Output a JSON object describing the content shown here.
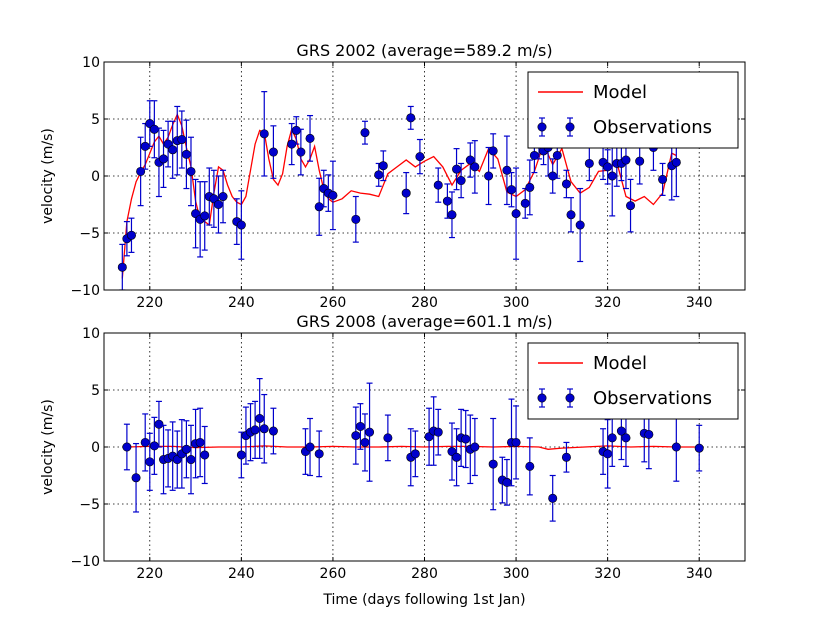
{
  "figure": {
    "xlabel": "Time (days following 1st Jan)"
  },
  "chart_data": [
    {
      "type": "scatter",
      "title": "GRS 2002 (average=589.2 m/s)",
      "ylabel": "velocity (m/s)",
      "xlim": [
        210,
        350
      ],
      "ylim": [
        -10,
        10
      ],
      "xticks": [
        "220",
        "240",
        "260",
        "280",
        "300",
        "320",
        "340"
      ],
      "yticks": [
        "−10",
        "−5",
        "0",
        "5",
        "10"
      ],
      "grid": true,
      "legend": {
        "position": "top-right",
        "entries": [
          "Model",
          "Observations"
        ]
      },
      "colors": {
        "model": "#ff0000",
        "observations": "#0000cc"
      },
      "model": {
        "x": [
          214,
          215,
          216,
          217,
          218,
          219,
          220,
          221,
          222,
          223,
          224,
          225,
          226,
          227,
          228,
          229,
          230,
          231,
          232,
          233,
          234,
          235,
          236,
          237,
          238,
          239,
          240,
          241,
          242,
          243,
          244,
          245,
          246,
          247,
          248,
          249,
          250,
          251,
          252,
          253,
          254,
          255,
          256,
          257,
          258,
          259,
          260,
          262,
          264,
          266,
          268,
          270,
          272,
          274,
          276,
          278,
          280,
          282,
          284,
          286,
          288,
          290,
          292,
          294,
          296,
          298,
          300,
          302,
          304,
          306,
          308,
          310,
          312,
          314,
          316,
          318,
          320,
          322,
          324,
          326,
          328,
          330,
          332,
          334,
          335
        ],
        "y": [
          -9,
          -4,
          -2,
          -0.5,
          0.3,
          1,
          2,
          3,
          3.5,
          2.8,
          3.4,
          4.5,
          5.4,
          4.4,
          2.5,
          0.8,
          -2.2,
          -3.8,
          -4,
          -4.3,
          -1.5,
          0.8,
          0.5,
          -0.8,
          -1.8,
          -2.3,
          -2.5,
          -1.8,
          0.5,
          2.8,
          4,
          3.8,
          1.5,
          -0.3,
          -0.8,
          0.2,
          2.6,
          4.1,
          3.2,
          1.5,
          0.8,
          1.5,
          2.6,
          0.5,
          -1.2,
          -2,
          -2.3,
          -2,
          -1.3,
          -1.5,
          -1.6,
          -1.8,
          0.2,
          0.8,
          1.4,
          0.8,
          1.3,
          1.7,
          0.8,
          -0.8,
          0.5,
          1.1,
          0.4,
          2.4,
          1.5,
          -1.4,
          -1.8,
          -1.2,
          0.4,
          2.8,
          1,
          2.4,
          -0.5,
          -1.5,
          -1,
          0.4,
          0.5,
          1.2,
          -1.8,
          -2.2,
          -1.8,
          -2.5,
          -1.5,
          2,
          1.8
        ]
      },
      "observations": {
        "x": [
          214,
          215,
          216,
          218,
          219,
          220,
          221,
          222,
          223,
          224,
          225,
          226,
          227,
          228,
          229,
          230,
          231,
          232,
          233,
          234,
          235,
          236,
          239,
          240,
          245,
          247,
          251,
          252,
          253,
          255,
          257,
          258,
          259,
          260,
          265,
          267,
          270,
          271,
          276,
          277,
          279,
          283,
          285,
          286,
          287,
          288,
          290,
          291,
          294,
          295,
          298,
          299,
          300,
          302,
          303,
          304,
          305,
          306,
          307,
          308,
          309,
          311,
          312,
          314,
          316,
          319,
          320,
          321,
          322,
          323,
          324,
          325,
          327,
          330,
          332,
          334,
          335
        ],
        "y": [
          -8,
          -5.5,
          -5.2,
          0.4,
          2.6,
          4.6,
          4.1,
          1.2,
          1.5,
          2.8,
          2.3,
          3.1,
          3.2,
          1.9,
          0.4,
          -3.3,
          -3.8,
          -3.5,
          -1.8,
          -2,
          -2.5,
          -1.8,
          -4,
          -4.3,
          3.7,
          2.1,
          2.8,
          4,
          2.1,
          3.3,
          -2.7,
          -1.1,
          -1.5,
          -1.7,
          -3.8,
          3.8,
          0.1,
          0.9,
          -1.5,
          5.1,
          1.7,
          -0.8,
          -2.2,
          -3.4,
          0.6,
          -0.4,
          1.4,
          0.8,
          0,
          2.2,
          0.5,
          -1.2,
          -3.3,
          -2.4,
          -1,
          1.8,
          4,
          2.2,
          2.5,
          0,
          1.8,
          -0.7,
          -3.4,
          -4.3,
          1.1,
          1.2,
          0.8,
          0,
          1.1,
          1.1,
          1.4,
          -2.6,
          1.3,
          2.5,
          -0.3,
          0.9,
          1.2
        ],
        "err": [
          2,
          1.5,
          1.5,
          3,
          2,
          2,
          2.5,
          3,
          2.5,
          2,
          2.5,
          3,
          2.5,
          3,
          3,
          3,
          3.3,
          3,
          2.5,
          2.5,
          2.5,
          2.3,
          2,
          3,
          3.7,
          2.3,
          1.8,
          1.2,
          2,
          2,
          2.5,
          1.6,
          1.6,
          3,
          2,
          1,
          1,
          1.3,
          1.8,
          1,
          1.5,
          1.5,
          1.5,
          2,
          1.8,
          1.5,
          1.5,
          2.3,
          2.5,
          1.5,
          3,
          1.5,
          4,
          1.3,
          2.4,
          1.5,
          2.5,
          1.2,
          2.5,
          1.5,
          2,
          1.2,
          1.5,
          3.2,
          1.5,
          1.5,
          1.5,
          3.5,
          2,
          1.5,
          2.5,
          2.3,
          2,
          2,
          1.4,
          3,
          3
        ]
      }
    },
    {
      "type": "scatter",
      "title": "GRS 2008 (average=601.1 m/s)",
      "ylabel": "velocity (m/s)",
      "xlim": [
        210,
        350
      ],
      "ylim": [
        -10,
        10
      ],
      "xticks": [
        "220",
        "240",
        "260",
        "280",
        "300",
        "320",
        "340"
      ],
      "yticks": [
        "−10",
        "−5",
        "0",
        "5",
        "10"
      ],
      "grid": true,
      "legend": {
        "position": "top-right",
        "entries": [
          "Model",
          "Observations"
        ]
      },
      "colors": {
        "model": "#ff0000",
        "observations": "#0000cc"
      },
      "model": {
        "x": [
          215,
          220,
          225,
          230,
          235,
          240,
          245,
          250,
          255,
          260,
          265,
          270,
          275,
          280,
          285,
          290,
          295,
          300,
          305,
          307,
          310,
          315,
          320,
          325,
          330,
          335,
          339
        ],
        "y": [
          0,
          0.05,
          0.05,
          -0.05,
          0,
          0,
          0.1,
          0,
          0,
          0.05,
          0,
          0,
          0.05,
          0,
          0.05,
          0.05,
          0,
          0.05,
          0,
          -0.2,
          -0.1,
          0,
          0.1,
          0,
          0.05,
          0,
          0
        ]
      },
      "observations": {
        "x": [
          215,
          217,
          219,
          220,
          221,
          222,
          223,
          224,
          225,
          226,
          227,
          228,
          229,
          230,
          231,
          232,
          240,
          241,
          242,
          243,
          244,
          245,
          247,
          254,
          255,
          257,
          265,
          266,
          267,
          268,
          272,
          277,
          278,
          281,
          282,
          283,
          286,
          287,
          288,
          289,
          290,
          291,
          295,
          297,
          298,
          299,
          300,
          303,
          308,
          311,
          319,
          320,
          321,
          323,
          324,
          328,
          329,
          335,
          340
        ],
        "y": [
          0,
          -2.7,
          0.4,
          -1.3,
          0.1,
          2,
          -1.1,
          -1,
          -0.8,
          -1.1,
          -0.6,
          -0.2,
          -1.1,
          0.3,
          0.4,
          -0.7,
          -0.7,
          1,
          1.3,
          1.5,
          2.5,
          1.6,
          1.4,
          -0.4,
          0,
          -0.6,
          1,
          1.8,
          0.4,
          1.3,
          0.8,
          -0.9,
          -0.6,
          0.9,
          1.4,
          1.3,
          -0.4,
          -0.9,
          0.8,
          0.7,
          -0.2,
          0,
          -1.5,
          -2.9,
          -3.1,
          0.4,
          0.4,
          -1.7,
          -4.5,
          -0.9,
          -0.4,
          -0.6,
          0.8,
          1.4,
          0.8,
          1.2,
          1.1,
          0,
          -0.1
        ],
        "err": [
          2,
          3,
          2.5,
          2.5,
          2.5,
          2,
          3,
          2.5,
          3,
          2.5,
          3,
          2.5,
          3,
          3,
          3,
          2.5,
          2,
          2.5,
          2.5,
          2.5,
          3.5,
          3,
          2,
          2,
          2.5,
          2,
          2.5,
          2,
          2.5,
          4.3,
          2,
          2.5,
          2,
          2.5,
          3,
          2,
          2.5,
          2.5,
          2.5,
          2.5,
          3,
          2.5,
          4,
          2,
          2,
          3.8,
          3.2,
          2.5,
          2,
          1.3,
          2,
          3,
          2.5,
          2.5,
          2.5,
          2.5,
          3,
          3,
          2
        ]
      }
    }
  ]
}
